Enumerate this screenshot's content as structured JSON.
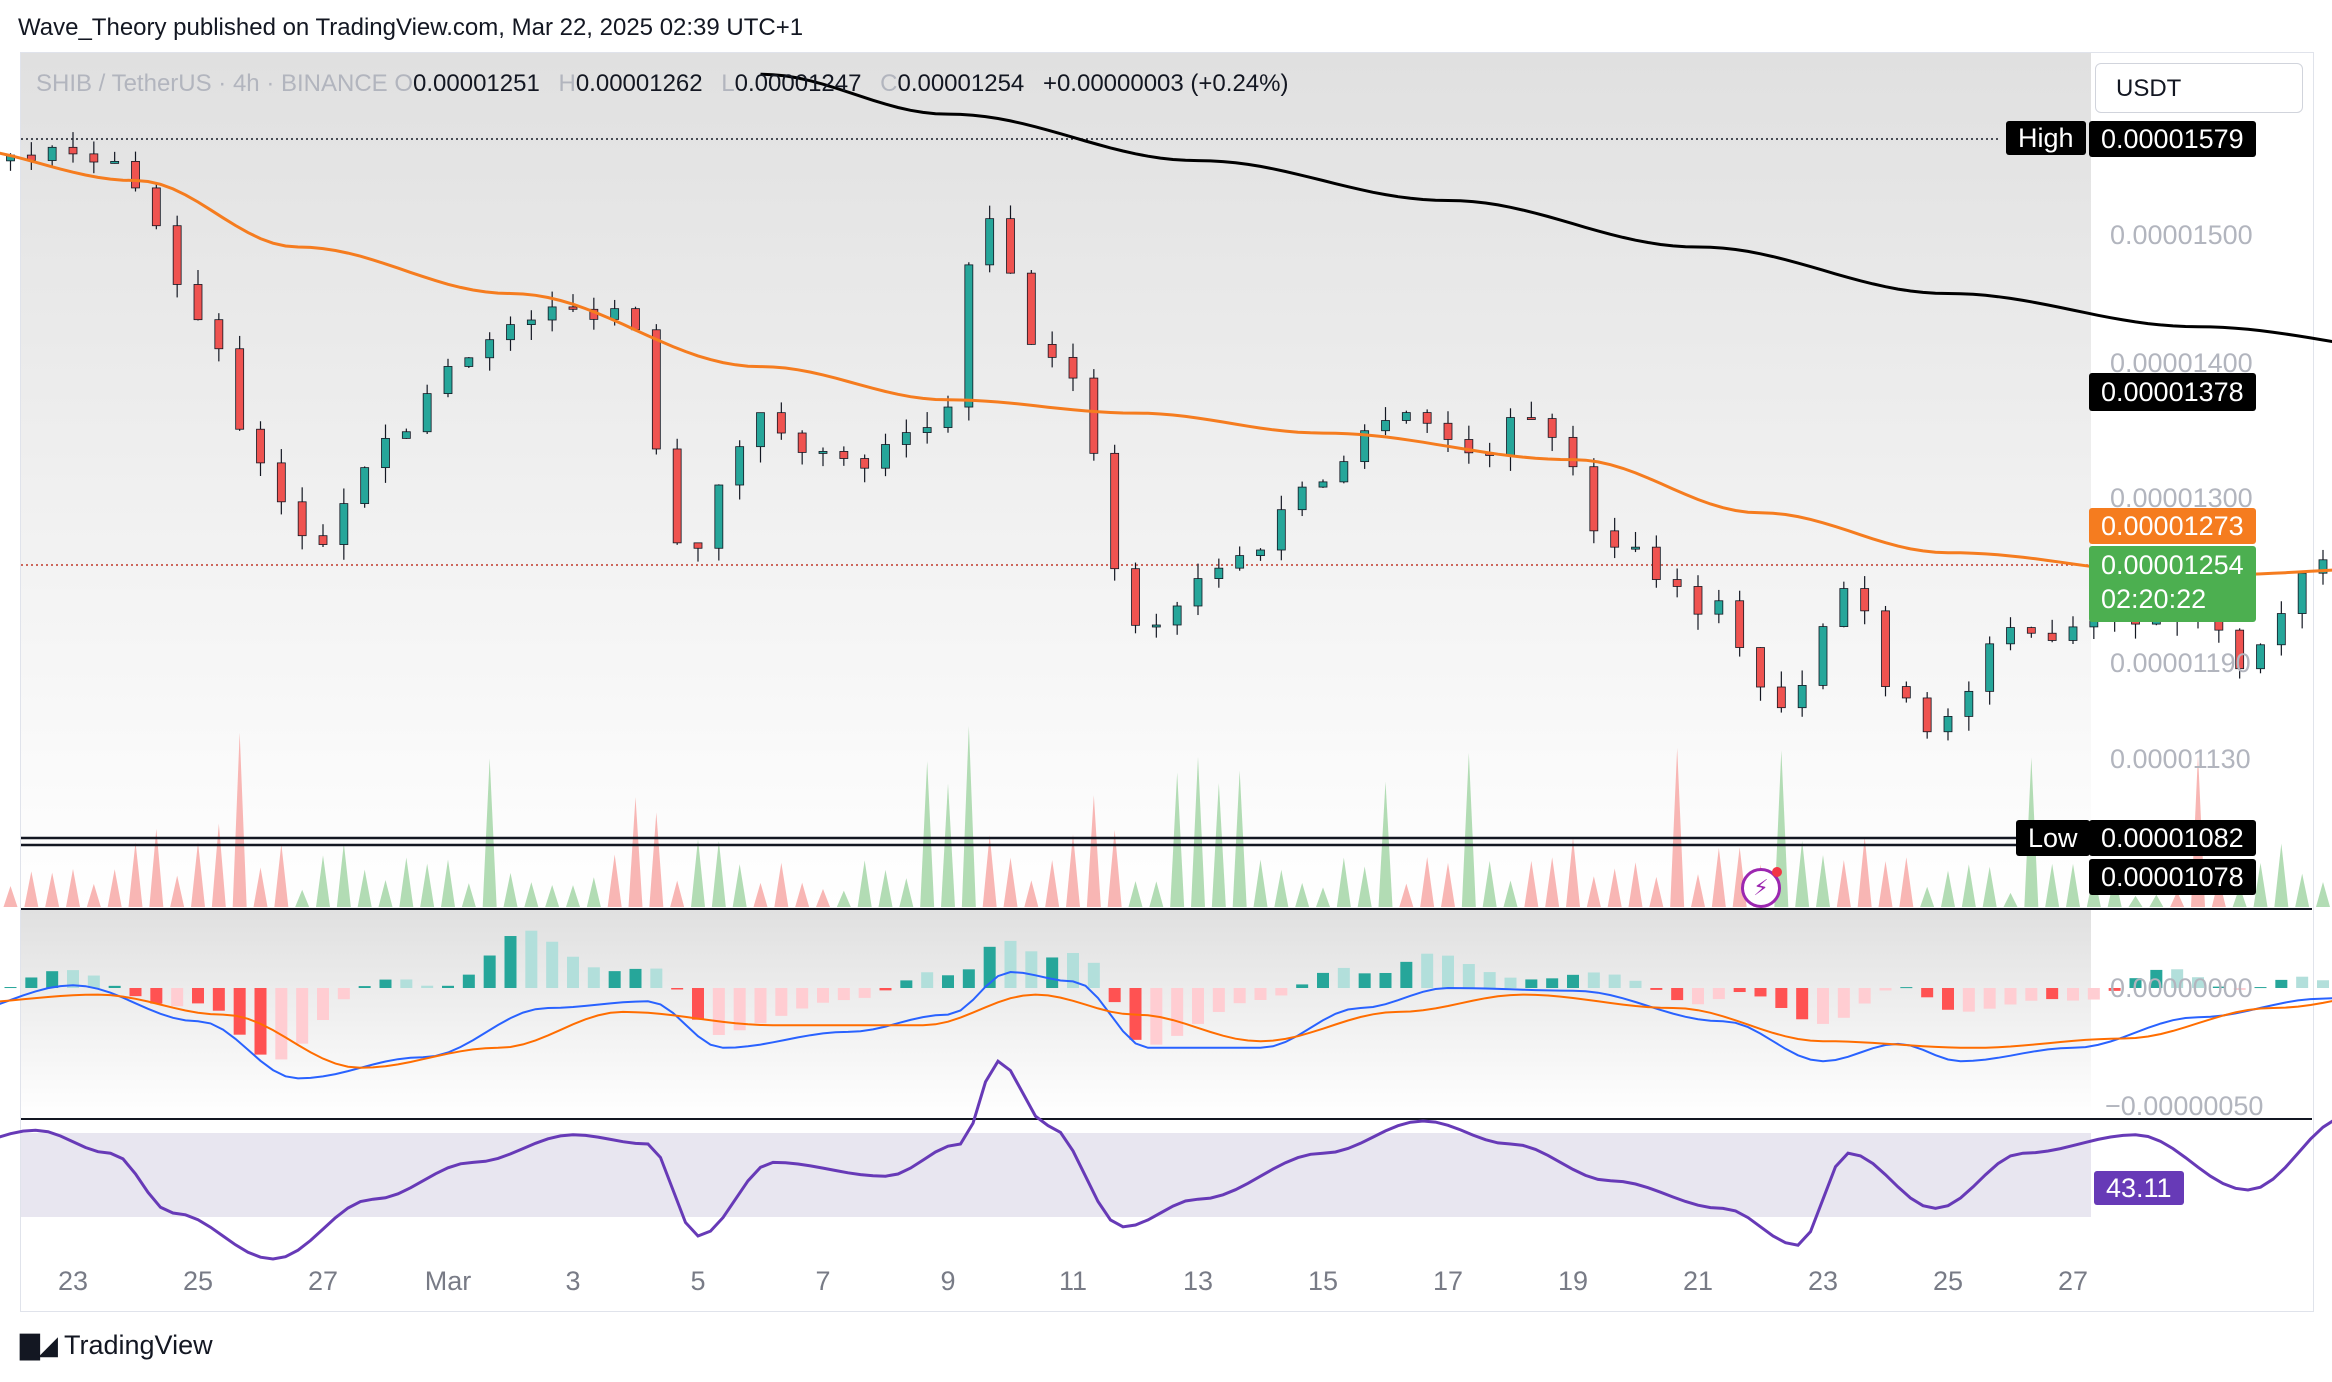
{
  "header": {
    "publisher": "Wave_Theory published on TradingView.com, Mar 22, 2025 02:39 UTC+1"
  },
  "legend": {
    "symbol": "SHIB / TetherUS · 4h · BINANCE",
    "o_label": "O",
    "o": "0.00001251",
    "h_label": "H",
    "h": "0.00001262",
    "l_label": "L",
    "l": "0.00001247",
    "c_label": "C",
    "c": "0.00001254",
    "change": "+0.00000003 (+0.24%)"
  },
  "currency": "USDT",
  "tags": {
    "high_label": "High",
    "high": "0.00001579",
    "ema200": "0.00001378",
    "ema50": "0.00001273",
    "last": "0.00001254",
    "countdown": "02:20:22",
    "low_label": "Low",
    "low": "0.00001082",
    "low2": "0.00001078",
    "rsi": "43.11"
  },
  "footer": {
    "brand": "TradingView"
  },
  "colors": {
    "up": "#26a69a",
    "down": "#ef5350",
    "ema50": "#f57c1f",
    "ema200": "#000000",
    "rsi": "#673ab7",
    "macd": "#2962ff",
    "signal": "#ff6d00"
  },
  "chart_data": {
    "type": "candlestick",
    "title": "SHIB / TetherUS · 4h · BINANCE",
    "x_ticks": [
      "23",
      "25",
      "27",
      "Mar",
      "3",
      "5",
      "7",
      "9",
      "11",
      "13",
      "15",
      "17",
      "19",
      "21",
      "23",
      "25",
      "27"
    ],
    "price_ticks": [
      "0.00001500",
      "0.00001400",
      "0.00001300",
      "0.00001190",
      "0.00001130"
    ],
    "macd_ticks": [
      "0.00000000",
      "−0.00000050"
    ],
    "ylim": [
      1.05e-05,
      1.6e-05
    ],
    "anchors": [
      {
        "day": 22.0,
        "price": 1.555
      },
      {
        "day": 22.5,
        "price": 1.575
      },
      {
        "day": 23.4,
        "price": 1.56
      },
      {
        "day": 24.0,
        "price": 1.45
      },
      {
        "day": 24.5,
        "price": 1.33
      },
      {
        "day": 24.9,
        "price": 1.275
      },
      {
        "day": 25.4,
        "price": 1.345
      },
      {
        "day": 26.2,
        "price": 1.425
      },
      {
        "day": 26.8,
        "price": 1.45
      },
      {
        "day": 27.4,
        "price": 1.455
      },
      {
        "day": 27.9,
        "price": 1.275
      },
      {
        "day": 28.5,
        "price": 1.37
      },
      {
        "day": 29.2,
        "price": 1.335
      },
      {
        "day": 29.9,
        "price": 1.36
      },
      {
        "day": 30.3,
        "price": 1.52
      },
      {
        "day": 30.7,
        "price": 1.43
      },
      {
        "day": 31.0,
        "price": 1.395
      },
      {
        "day": 31.5,
        "price": 1.215
      },
      {
        "day": 32.3,
        "price": 1.265
      },
      {
        "day": 33.0,
        "price": 1.33
      },
      {
        "day": 33.6,
        "price": 1.38
      },
      {
        "day": 34.2,
        "price": 1.345
      },
      {
        "day": 34.7,
        "price": 1.375
      },
      {
        "day": 35.3,
        "price": 1.28
      },
      {
        "day": 36.1,
        "price": 1.23
      },
      {
        "day": 36.7,
        "price": 1.15
      },
      {
        "day": 37.2,
        "price": 1.245
      },
      {
        "day": 37.6,
        "price": 1.165
      },
      {
        "day": 37.9,
        "price": 1.14
      },
      {
        "day": 38.5,
        "price": 1.205
      },
      {
        "day": 39.3,
        "price": 1.225
      },
      {
        "day": 39.9,
        "price": 1.225
      },
      {
        "day": 40.4,
        "price": 1.19
      },
      {
        "day": 40.9,
        "price": 1.255
      },
      {
        "day": 41.5,
        "price": 1.265
      },
      {
        "day": 42.2,
        "price": 1.275
      },
      {
        "day": 42.8,
        "price": 1.3
      },
      {
        "day": 43.6,
        "price": 1.345
      },
      {
        "day": 44.1,
        "price": 1.3
      },
      {
        "day": 44.7,
        "price": 1.255
      },
      {
        "day": 45.2,
        "price": 1.235
      },
      {
        "day": 45.9,
        "price": 1.27
      },
      {
        "day": 46.6,
        "price": 1.29
      },
      {
        "day": 47.3,
        "price": 1.275
      },
      {
        "day": 47.9,
        "price": 1.255
      },
      {
        "day": 48.5,
        "price": 1.254
      }
    ],
    "ema50_anchors": [
      {
        "day": 22.0,
        "price": 1.575
      },
      {
        "day": 23.5,
        "price": 1.55
      },
      {
        "day": 24.8,
        "price": 1.5
      },
      {
        "day": 26.5,
        "price": 1.465
      },
      {
        "day": 28.5,
        "price": 1.41
      },
      {
        "day": 30.0,
        "price": 1.385
      },
      {
        "day": 31.5,
        "price": 1.375
      },
      {
        "day": 33.0,
        "price": 1.36
      },
      {
        "day": 35.0,
        "price": 1.34
      },
      {
        "day": 36.5,
        "price": 1.3
      },
      {
        "day": 38.0,
        "price": 1.27
      },
      {
        "day": 40.0,
        "price": 1.253
      },
      {
        "day": 42.0,
        "price": 1.26
      },
      {
        "day": 44.0,
        "price": 1.28
      },
      {
        "day": 46.0,
        "price": 1.275
      },
      {
        "day": 48.5,
        "price": 1.273
      }
    ],
    "ema200_anchors": [
      {
        "day": 28.5,
        "price": 1.63
      },
      {
        "day": 30.0,
        "price": 1.6
      },
      {
        "day": 32.0,
        "price": 1.565
      },
      {
        "day": 34.0,
        "price": 1.535
      },
      {
        "day": 36.0,
        "price": 1.5
      },
      {
        "day": 38.0,
        "price": 1.465
      },
      {
        "day": 40.0,
        "price": 1.44
      },
      {
        "day": 42.0,
        "price": 1.42
      },
      {
        "day": 44.0,
        "price": 1.405
      },
      {
        "day": 46.0,
        "price": 1.39
      },
      {
        "day": 48.5,
        "price": 1.378
      }
    ],
    "rsi_anchors": [
      {
        "day": 22.0,
        "value": 49
      },
      {
        "day": 22.7,
        "value": 53
      },
      {
        "day": 23.3,
        "value": 48
      },
      {
        "day": 23.8,
        "value": 35
      },
      {
        "day": 24.6,
        "value": 25
      },
      {
        "day": 25.4,
        "value": 38
      },
      {
        "day": 26.2,
        "value": 46
      },
      {
        "day": 27.0,
        "value": 52
      },
      {
        "day": 27.6,
        "value": 50
      },
      {
        "day": 28.0,
        "value": 30
      },
      {
        "day": 28.6,
        "value": 46
      },
      {
        "day": 29.5,
        "value": 43
      },
      {
        "day": 30.1,
        "value": 50
      },
      {
        "day": 30.4,
        "value": 68
      },
      {
        "day": 30.8,
        "value": 54
      },
      {
        "day": 31.4,
        "value": 32
      },
      {
        "day": 32.0,
        "value": 38
      },
      {
        "day": 33.0,
        "value": 48
      },
      {
        "day": 33.8,
        "value": 55
      },
      {
        "day": 34.5,
        "value": 50
      },
      {
        "day": 35.3,
        "value": 42
      },
      {
        "day": 36.2,
        "value": 36
      },
      {
        "day": 36.8,
        "value": 28
      },
      {
        "day": 37.2,
        "value": 48
      },
      {
        "day": 37.9,
        "value": 36
      },
      {
        "day": 38.6,
        "value": 48
      },
      {
        "day": 39.5,
        "value": 52
      },
      {
        "day": 40.4,
        "value": 40
      },
      {
        "day": 41.2,
        "value": 56
      },
      {
        "day": 42.2,
        "value": 60
      },
      {
        "day": 43.2,
        "value": 62
      },
      {
        "day": 43.8,
        "value": 52
      },
      {
        "day": 44.5,
        "value": 46
      },
      {
        "day": 45.3,
        "value": 48
      },
      {
        "day": 46.0,
        "value": 54
      },
      {
        "day": 46.8,
        "value": 52
      },
      {
        "day": 47.4,
        "value": 56
      },
      {
        "day": 47.9,
        "value": 44
      },
      {
        "day": 48.5,
        "value": 43.11
      }
    ],
    "macd_anchors": [
      {
        "day": 22.0,
        "value": -0.2
      },
      {
        "day": 23.0,
        "value": 0.02
      },
      {
        "day": 24.0,
        "value": -0.25
      },
      {
        "day": 24.8,
        "value": -0.68
      },
      {
        "day": 25.8,
        "value": -0.52
      },
      {
        "day": 26.8,
        "value": -0.15
      },
      {
        "day": 27.6,
        "value": -0.1
      },
      {
        "day": 28.2,
        "value": -0.45
      },
      {
        "day": 29.2,
        "value": -0.33
      },
      {
        "day": 30.0,
        "value": -0.2
      },
      {
        "day": 30.5,
        "value": 0.12
      },
      {
        "day": 31.0,
        "value": 0.05
      },
      {
        "day": 31.6,
        "value": -0.45
      },
      {
        "day": 32.5,
        "value": -0.45
      },
      {
        "day": 33.3,
        "value": -0.15
      },
      {
        "day": 34.0,
        "value": 0.0
      },
      {
        "day": 35.0,
        "value": -0.02
      },
      {
        "day": 36.2,
        "value": -0.25
      },
      {
        "day": 37.0,
        "value": -0.55
      },
      {
        "day": 37.6,
        "value": -0.42
      },
      {
        "day": 38.1,
        "value": -0.55
      },
      {
        "day": 39.0,
        "value": -0.45
      },
      {
        "day": 40.0,
        "value": -0.22
      },
      {
        "day": 41.0,
        "value": -0.08
      },
      {
        "day": 42.0,
        "value": 0.1
      },
      {
        "day": 43.3,
        "value": 0.32
      },
      {
        "day": 44.2,
        "value": 0.1
      },
      {
        "day": 45.0,
        "value": -0.1
      },
      {
        "day": 46.0,
        "value": 0.05
      },
      {
        "day": 47.5,
        "value": 0.04
      },
      {
        "day": 48.5,
        "value": -0.06
      }
    ],
    "signal_anchors": [
      {
        "day": 22.0,
        "value": -0.12
      },
      {
        "day": 23.2,
        "value": -0.05
      },
      {
        "day": 24.2,
        "value": -0.2
      },
      {
        "day": 25.3,
        "value": -0.6
      },
      {
        "day": 26.4,
        "value": -0.45
      },
      {
        "day": 27.4,
        "value": -0.18
      },
      {
        "day": 28.6,
        "value": -0.28
      },
      {
        "day": 29.8,
        "value": -0.28
      },
      {
        "day": 30.7,
        "value": -0.05
      },
      {
        "day": 31.5,
        "value": -0.2
      },
      {
        "day": 32.5,
        "value": -0.4
      },
      {
        "day": 33.6,
        "value": -0.18
      },
      {
        "day": 34.6,
        "value": -0.05
      },
      {
        "day": 35.8,
        "value": -0.15
      },
      {
        "day": 37.0,
        "value": -0.4
      },
      {
        "day": 38.2,
        "value": -0.45
      },
      {
        "day": 39.4,
        "value": -0.38
      },
      {
        "day": 40.6,
        "value": -0.15
      },
      {
        "day": 42.0,
        "value": 0.05
      },
      {
        "day": 43.6,
        "value": 0.26
      },
      {
        "day": 44.8,
        "value": 0.12
      },
      {
        "day": 45.8,
        "value": 0.0
      },
      {
        "day": 47.2,
        "value": 0.04
      },
      {
        "day": 48.5,
        "value": -0.02
      }
    ]
  }
}
